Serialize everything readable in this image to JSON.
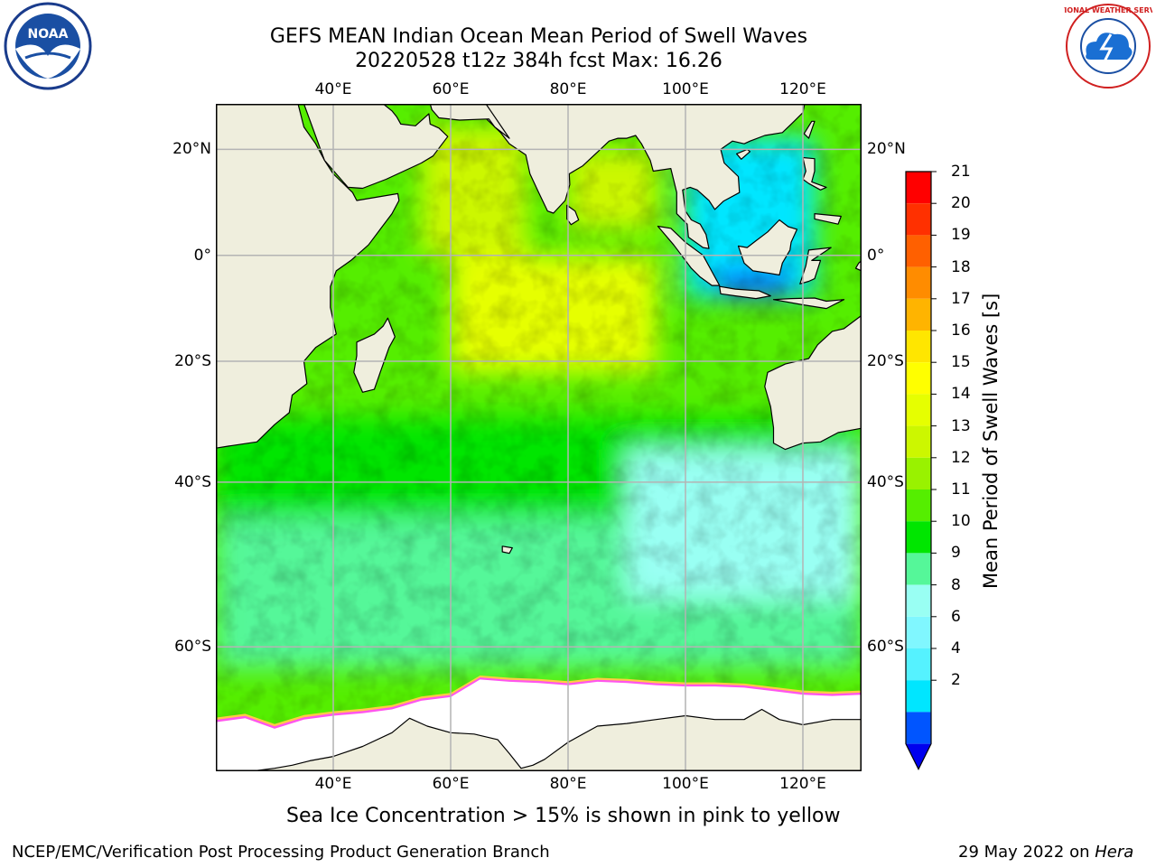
{
  "header": {
    "title_line1": "GEFS MEAN Indian Ocean Mean Period of Swell Waves",
    "title_line2": "20220528 t12z 384h fcst   Max: 16.26"
  },
  "logos": {
    "left": {
      "name": "noaa-logo",
      "text": "NOAA"
    },
    "right": {
      "name": "nws-logo",
      "text": "NATIONAL WEATHER SERVICE"
    }
  },
  "map": {
    "lon_range": [
      20,
      130
    ],
    "lat_range": [
      -70,
      28
    ],
    "meridians": [
      40,
      60,
      80,
      100,
      120
    ],
    "parallels": [
      20,
      0,
      -20,
      -40,
      -60
    ],
    "lon_labels": [
      "40°E",
      "60°E",
      "80°E",
      "100°E",
      "120°E"
    ],
    "lat_labels": [
      "20°N",
      "0°",
      "20°S",
      "40°S",
      "60°S"
    ],
    "colors": {
      "land": "#efeedd",
      "ice": "#ffffff",
      "grid": "#b4b4b4",
      "coast": "#000000",
      "ice_edge_pink": "#ff55ee",
      "ice_edge_yellow": "#ffcc44"
    },
    "regions": [
      {
        "name": "southern-ocean-band",
        "lon": [
          20,
          130
        ],
        "lat": [
          -62,
          -45
        ],
        "period": 9
      },
      {
        "name": "south-subtropics",
        "lon": [
          20,
          130
        ],
        "lat": [
          -45,
          -30
        ],
        "period": 10
      },
      {
        "name": "arabian-sea",
        "lon": [
          55,
          73
        ],
        "lat": [
          0,
          24
        ],
        "period": 13
      },
      {
        "name": "bay-of-bengal",
        "lon": [
          80,
          95
        ],
        "lat": [
          5,
          20
        ],
        "period": 13
      },
      {
        "name": "central-indian-ocean",
        "lon": [
          60,
          95
        ],
        "lat": [
          -22,
          0
        ],
        "period": 14
      },
      {
        "name": "south-china-sea",
        "lon": [
          100,
          122
        ],
        "lat": [
          -8,
          22
        ],
        "period": 4
      },
      {
        "name": "java-sea",
        "lon": [
          105,
          118
        ],
        "lat": [
          -8,
          -3
        ],
        "period": 2
      },
      {
        "name": "east-southern-sector",
        "lon": [
          90,
          130
        ],
        "lat": [
          -55,
          -35
        ],
        "period": 8
      }
    ]
  },
  "colorbar": {
    "label": "Mean Period of Swell Waves [s]",
    "ticks": [
      "21",
      "20",
      "19",
      "18",
      "17",
      "16",
      "15",
      "14",
      "13",
      "12",
      "11",
      "10",
      "9",
      "8",
      "6",
      "4",
      "2"
    ],
    "levels": [
      2,
      4,
      6,
      7,
      8,
      9,
      10,
      11,
      12,
      13,
      14,
      15,
      16,
      17,
      18,
      19,
      20,
      21
    ],
    "colors": [
      "#0055ff",
      "#00e6ff",
      "#55f2ff",
      "#80f7ff",
      "#99fff3",
      "#55f799",
      "#00e600",
      "#55ee00",
      "#99f200",
      "#ccf700",
      "#e6ff00",
      "#ffff00",
      "#ffe600",
      "#ffb400",
      "#ff8c00",
      "#ff6000",
      "#ff3000"
    ],
    "under_color": "#0000ee",
    "top_color": "#ff0000"
  },
  "caption": "Sea Ice Concentration > 15% is shown in pink to yellow",
  "footer": {
    "left": "NCEP/EMC/Verification Post Processing Product Generation Branch",
    "right_prefix": "29 May 2022 on ",
    "right_machine": "Hera"
  }
}
